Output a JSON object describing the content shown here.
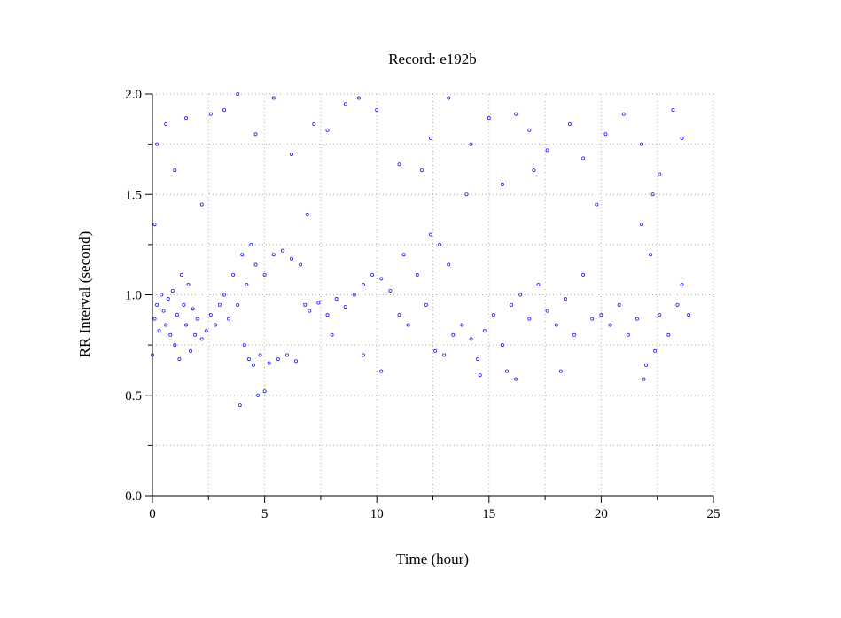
{
  "chart_data": {
    "type": "scatter",
    "title": "Record:  e192b",
    "xlabel": "Time (hour)",
    "ylabel": "RR Interval (second)",
    "xlim": [
      0,
      25
    ],
    "ylim": [
      0.0,
      2.0
    ],
    "xticks": [
      0,
      5,
      10,
      15,
      20,
      25
    ],
    "xtick_labels": [
      "0",
      "5",
      "10",
      "15",
      "20",
      "25"
    ],
    "yticks": [
      0.0,
      0.5,
      1.0,
      1.5,
      2.0
    ],
    "ytick_labels": [
      "0.0",
      "0.5",
      "1.0",
      "1.5",
      "2.0"
    ],
    "grid": true,
    "marker": "open-circle",
    "series_color": "#1f1fff",
    "series": [
      {
        "points": [
          [
            0.0,
            0.7
          ],
          [
            0.1,
            0.88
          ],
          [
            0.2,
            0.95
          ],
          [
            0.3,
            0.82
          ],
          [
            0.4,
            1.0
          ],
          [
            0.5,
            0.92
          ],
          [
            0.6,
            0.85
          ],
          [
            0.7,
            0.98
          ],
          [
            0.8,
            0.8
          ],
          [
            0.9,
            1.02
          ],
          [
            1.0,
            0.75
          ],
          [
            1.1,
            0.9
          ],
          [
            1.2,
            0.68
          ],
          [
            1.3,
            1.1
          ],
          [
            1.4,
            0.95
          ],
          [
            1.5,
            0.85
          ],
          [
            1.6,
            1.05
          ],
          [
            1.7,
            0.72
          ],
          [
            1.8,
            0.93
          ],
          [
            1.9,
            0.8
          ],
          [
            2.0,
            0.88
          ],
          [
            2.2,
            0.78
          ],
          [
            2.4,
            0.82
          ],
          [
            2.6,
            0.9
          ],
          [
            2.8,
            0.85
          ],
          [
            3.0,
            0.95
          ],
          [
            3.2,
            1.0
          ],
          [
            3.4,
            0.88
          ],
          [
            3.6,
            1.1
          ],
          [
            3.8,
            0.95
          ],
          [
            4.0,
            1.2
          ],
          [
            4.1,
            0.75
          ],
          [
            4.2,
            1.05
          ],
          [
            4.3,
            0.68
          ],
          [
            4.4,
            1.25
          ],
          [
            4.5,
            0.65
          ],
          [
            4.6,
            1.15
          ],
          [
            4.8,
            0.7
          ],
          [
            5.0,
            1.1
          ],
          [
            5.2,
            0.66
          ],
          [
            5.4,
            1.2
          ],
          [
            5.6,
            0.68
          ],
          [
            5.8,
            1.22
          ],
          [
            6.0,
            0.7
          ],
          [
            6.2,
            1.18
          ],
          [
            6.4,
            0.67
          ],
          [
            6.6,
            1.15
          ],
          [
            6.8,
            0.95
          ],
          [
            7.0,
            0.92
          ],
          [
            7.4,
            0.96
          ],
          [
            7.8,
            0.9
          ],
          [
            8.2,
            0.98
          ],
          [
            8.6,
            0.94
          ],
          [
            9.0,
            1.0
          ],
          [
            9.4,
            1.05
          ],
          [
            9.8,
            1.1
          ],
          [
            10.2,
            1.08
          ],
          [
            10.6,
            1.02
          ],
          [
            11.0,
            0.9
          ],
          [
            11.2,
            1.2
          ],
          [
            11.4,
            0.85
          ],
          [
            11.8,
            1.1
          ],
          [
            12.2,
            0.95
          ],
          [
            12.4,
            1.3
          ],
          [
            12.6,
            0.72
          ],
          [
            12.8,
            1.25
          ],
          [
            13.0,
            0.7
          ],
          [
            13.2,
            1.15
          ],
          [
            13.4,
            0.8
          ],
          [
            13.8,
            0.85
          ],
          [
            14.2,
            0.78
          ],
          [
            14.5,
            0.68
          ],
          [
            14.8,
            0.82
          ],
          [
            15.2,
            0.9
          ],
          [
            15.6,
            0.75
          ],
          [
            15.8,
            0.62
          ],
          [
            16.0,
            0.95
          ],
          [
            16.4,
            1.0
          ],
          [
            16.8,
            0.88
          ],
          [
            17.2,
            1.05
          ],
          [
            17.6,
            0.92
          ],
          [
            18.0,
            0.85
          ],
          [
            18.4,
            0.98
          ],
          [
            18.8,
            0.8
          ],
          [
            19.2,
            1.1
          ],
          [
            19.6,
            0.88
          ],
          [
            20.0,
            0.9
          ],
          [
            20.4,
            0.85
          ],
          [
            20.8,
            0.95
          ],
          [
            21.2,
            0.8
          ],
          [
            21.6,
            0.88
          ],
          [
            21.8,
            1.35
          ],
          [
            22.0,
            0.65
          ],
          [
            22.2,
            1.2
          ],
          [
            22.4,
            0.72
          ],
          [
            22.6,
            0.9
          ],
          [
            23.0,
            0.8
          ],
          [
            23.4,
            0.95
          ],
          [
            23.6,
            1.05
          ],
          [
            23.9,
            0.9
          ],
          [
            0.2,
            1.75
          ],
          [
            0.6,
            1.85
          ],
          [
            1.0,
            1.62
          ],
          [
            1.5,
            1.88
          ],
          [
            2.2,
            1.45
          ],
          [
            2.6,
            1.9
          ],
          [
            3.2,
            1.92
          ],
          [
            3.8,
            2.0
          ],
          [
            4.6,
            1.8
          ],
          [
            5.4,
            1.98
          ],
          [
            6.2,
            1.7
          ],
          [
            7.2,
            1.85
          ],
          [
            7.8,
            1.82
          ],
          [
            8.6,
            1.95
          ],
          [
            9.2,
            1.98
          ],
          [
            10.0,
            1.92
          ],
          [
            11.0,
            1.65
          ],
          [
            12.4,
            1.78
          ],
          [
            13.2,
            1.98
          ],
          [
            14.2,
            1.75
          ],
          [
            15.0,
            1.88
          ],
          [
            15.6,
            1.55
          ],
          [
            16.2,
            1.9
          ],
          [
            16.8,
            1.82
          ],
          [
            17.6,
            1.72
          ],
          [
            18.6,
            1.85
          ],
          [
            19.2,
            1.68
          ],
          [
            20.2,
            1.8
          ],
          [
            21.0,
            1.9
          ],
          [
            21.8,
            1.75
          ],
          [
            22.6,
            1.6
          ],
          [
            23.2,
            1.92
          ],
          [
            23.6,
            1.78
          ],
          [
            4.7,
            0.5
          ],
          [
            5.0,
            0.52
          ],
          [
            3.9,
            0.45
          ],
          [
            10.2,
            0.62
          ],
          [
            14.6,
            0.6
          ],
          [
            16.2,
            0.58
          ],
          [
            18.2,
            0.62
          ],
          [
            21.9,
            0.58
          ],
          [
            22.3,
            1.5
          ],
          [
            9.4,
            0.7
          ],
          [
            8.0,
            0.8
          ],
          [
            19.8,
            1.45
          ],
          [
            17.0,
            1.62
          ],
          [
            0.1,
            1.35
          ],
          [
            12.0,
            1.62
          ],
          [
            14.0,
            1.5
          ],
          [
            6.9,
            1.4
          ]
        ]
      }
    ]
  }
}
